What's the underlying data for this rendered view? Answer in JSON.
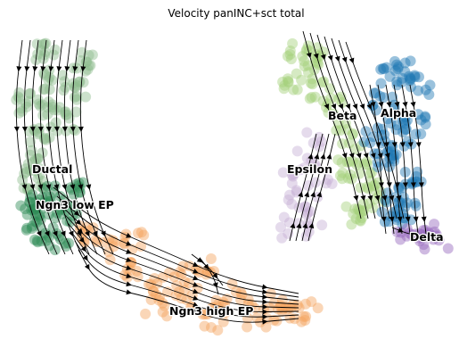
{
  "chart_data": {
    "type": "scatter",
    "title": "Velocity panINC+sct total",
    "xlabel": "",
    "ylabel": "",
    "grid": false,
    "legend": "on data",
    "point_alpha": 0.45,
    "clusters": [
      {
        "name": "Ductal",
        "color": "#8fbc8f",
        "center": [
          2.2,
          6.9
        ],
        "spread": [
          0.55,
          0.7
        ],
        "count": 120,
        "arrow": [
          0.05,
          -1.0
        ]
      },
      {
        "name": "Ngn3 low EP",
        "color": "#2e8b57",
        "center": [
          2.6,
          5.4
        ],
        "spread": [
          0.5,
          0.6
        ],
        "count": 80,
        "arrow": [
          0.35,
          -1.0
        ]
      },
      {
        "name": "Ngn3 high EP",
        "color": "#f4a460",
        "center": [
          6.3,
          2.3
        ],
        "spread": [
          1.4,
          0.55
        ],
        "count": 140,
        "arrow": [
          1.0,
          -0.25
        ]
      },
      {
        "name": "Beta",
        "color": "#a3d17a",
        "center": [
          11.6,
          8.2
        ],
        "spread": [
          0.45,
          1.2
        ],
        "count": 110,
        "arrow": [
          0.45,
          -0.8
        ]
      },
      {
        "name": "Alpha",
        "color": "#1f77b4",
        "center": [
          13.5,
          7.3
        ],
        "spread": [
          0.55,
          0.9
        ],
        "count": 130,
        "arrow": [
          0.1,
          -1.0
        ]
      },
      {
        "name": "Epsilon",
        "color": "#c5b0d5",
        "center": [
          10.5,
          5.8
        ],
        "spread": [
          0.3,
          0.6
        ],
        "count": 45,
        "arrow": [
          0.55,
          0.9
        ]
      },
      {
        "name": "Delta",
        "color": "#9467bd",
        "center": [
          14.4,
          4.2
        ],
        "spread": [
          0.5,
          0.18
        ],
        "count": 25,
        "arrow": [
          1.0,
          0.0
        ]
      }
    ]
  }
}
